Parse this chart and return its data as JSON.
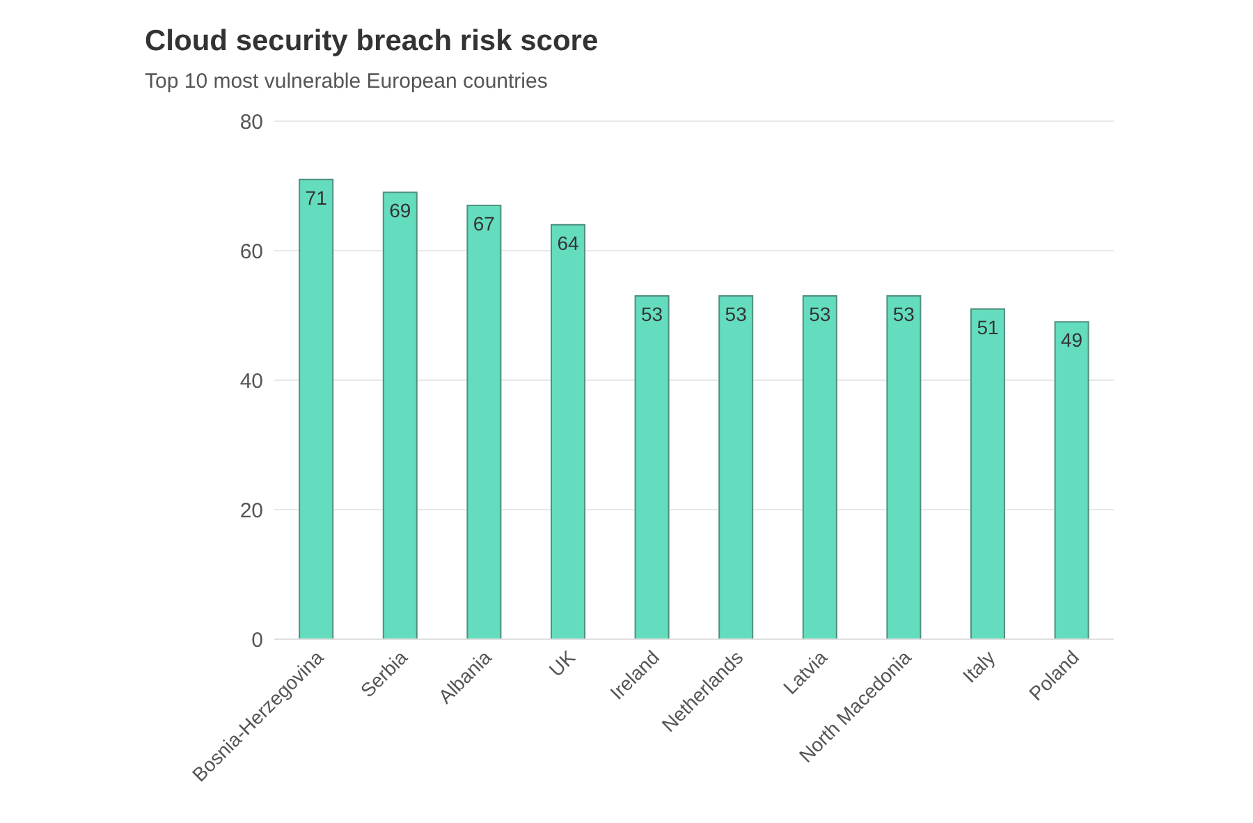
{
  "chart_data": {
    "type": "bar",
    "title": "Cloud security breach risk score",
    "subtitle": "Top 10 most vulnerable European countries",
    "categories": [
      "Bosnia-Herzegovina",
      "Serbia",
      "Albania",
      "UK",
      "Ireland",
      "Netherlands",
      "Latvia",
      "North Macedonia",
      "Italy",
      "Poland"
    ],
    "values": [
      71,
      69,
      67,
      64,
      53,
      53,
      53,
      53,
      51,
      49
    ],
    "color": "#64dcbe",
    "ylim": [
      0,
      80
    ],
    "yticks": [
      0,
      20,
      40,
      60,
      80
    ],
    "grid": "y",
    "data_labels": true,
    "legend": false
  }
}
